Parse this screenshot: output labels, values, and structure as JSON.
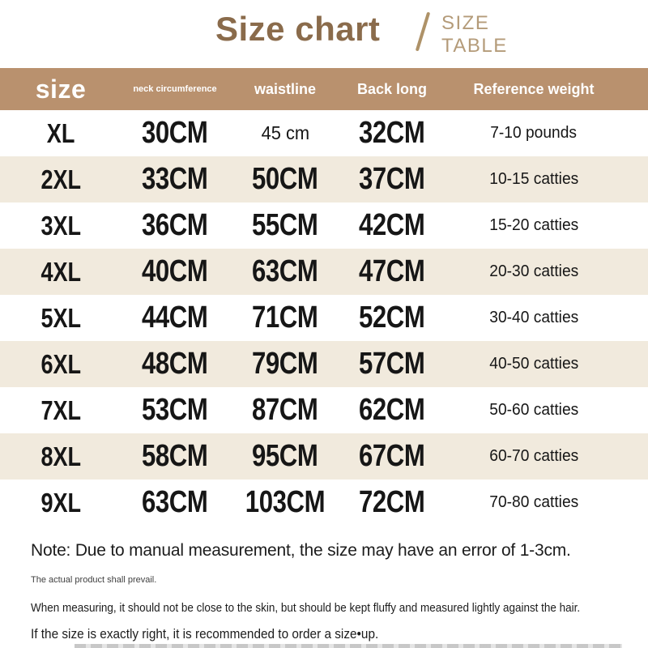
{
  "header": {
    "title": "Size chart",
    "subtitle_line1": "SIZE",
    "subtitle_line2": "TABLE"
  },
  "chart_data": {
    "type": "table",
    "title": "Size chart",
    "columns": [
      "size",
      "neck circumference",
      "waistline",
      "Back long",
      "Reference weight"
    ],
    "rows": [
      {
        "size": "XL",
        "neck": "30CM",
        "waist": "45 cm",
        "back": "32CM",
        "weight": "7-10 pounds"
      },
      {
        "size": "2XL",
        "neck": "33CM",
        "waist": "50CM",
        "back": "37CM",
        "weight": "10-15 catties"
      },
      {
        "size": "3XL",
        "neck": "36CM",
        "waist": "55CM",
        "back": "42CM",
        "weight": "15-20 catties"
      },
      {
        "size": "4XL",
        "neck": "40CM",
        "waist": "63CM",
        "back": "47CM",
        "weight": "20-30 catties"
      },
      {
        "size": "5XL",
        "neck": "44CM",
        "waist": "71CM",
        "back": "52CM",
        "weight": "30-40 catties"
      },
      {
        "size": "6XL",
        "neck": "48CM",
        "waist": "79CM",
        "back": "57CM",
        "weight": "40-50 catties"
      },
      {
        "size": "7XL",
        "neck": "53CM",
        "waist": "87CM",
        "back": "62CM",
        "weight": "50-60 catties"
      },
      {
        "size": "8XL",
        "neck": "58CM",
        "waist": "95CM",
        "back": "67CM",
        "weight": "60-70 catties"
      },
      {
        "size": "9XL",
        "neck": "63CM",
        "waist": "103CM",
        "back": "72CM",
        "weight": "70-80 catties"
      }
    ]
  },
  "notes": {
    "main": "Note: Due to manual measurement, the size may have an error of 1-3cm.",
    "sub": "The actual product shall prevail.",
    "line2": "When measuring, it should not be close to the skin, but should be kept fluffy and measured lightly against the hair.",
    "line3": "If the size is exactly right, it is recommended to order a size•up."
  },
  "colors": {
    "header_bg": "#b9916e",
    "alt_row_bg": "#f1eadd",
    "title_brown": "#8a6b4b",
    "subtitle_tan": "#b49b79",
    "header_text": "#ffffff",
    "table_text": "#161616"
  }
}
